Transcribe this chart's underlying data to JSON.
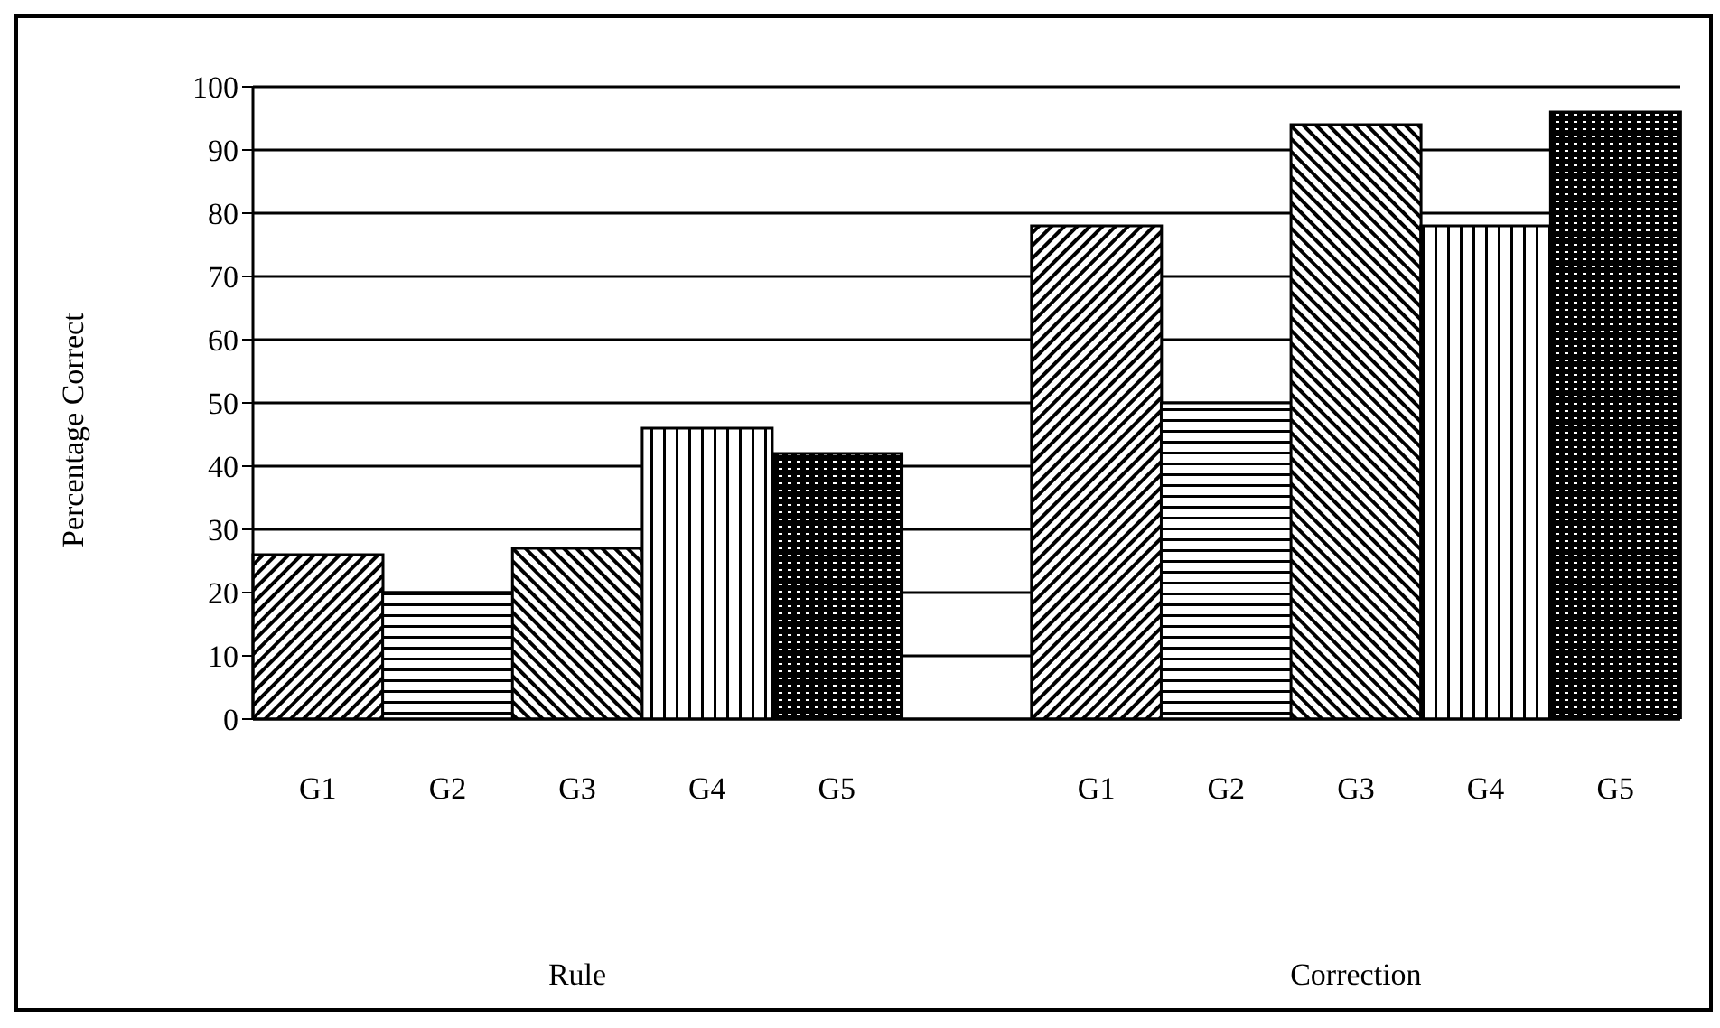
{
  "chart_data": {
    "type": "bar",
    "ylabel": "Percentage Correct",
    "categories": [
      "G1",
      "G2",
      "G3",
      "G4",
      "G5",
      null,
      "G1",
      "G2",
      "G3",
      "G4",
      "G5"
    ],
    "values": [
      26,
      20,
      27,
      46,
      42,
      null,
      78,
      50,
      94,
      78,
      96
    ],
    "colors": [
      "#000000",
      "#000000",
      "#000000",
      "#000000",
      "#000000",
      "#000000",
      "#000000",
      "#000000",
      "#000000",
      "#000000",
      "#000000"
    ],
    "ylim": [
      0,
      100
    ],
    "yticks": [
      0,
      10,
      20,
      30,
      40,
      50,
      60,
      70,
      80,
      90,
      100
    ],
    "grid": "y",
    "legend": false,
    "annotations": [
      "Rule",
      "Correction"
    ]
  }
}
